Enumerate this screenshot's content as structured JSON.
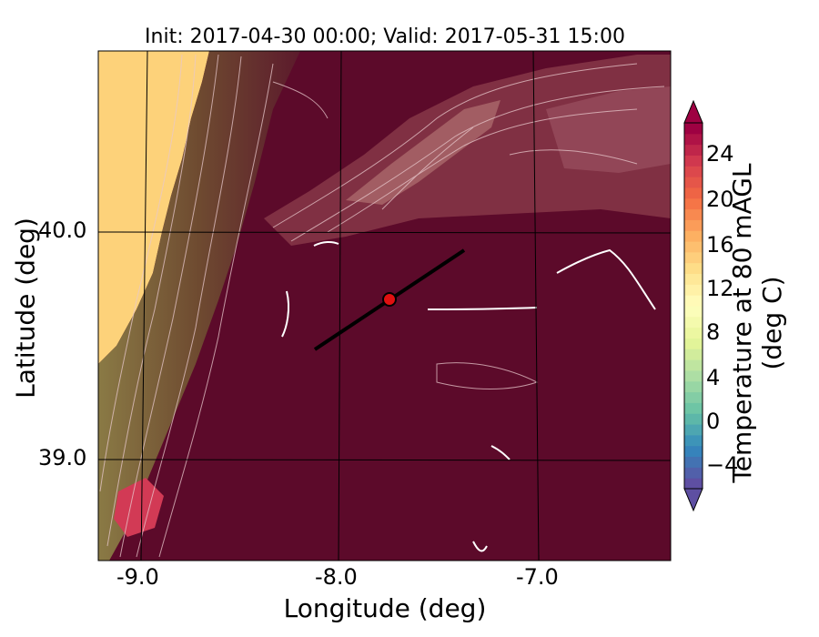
{
  "title": "Init: 2017-04-30 00:00; Valid: 2017-05-31 15:00",
  "xlabel": "Longitude (deg)",
  "ylabel": "Latitude (deg)",
  "colorbar_label": "Temperature at 80 mAGL (deg C)",
  "x_ticks": [
    "-9.0",
    "-8.0",
    "-7.0"
  ],
  "y_ticks": [
    "40.0",
    "39.0"
  ],
  "colorbar_ticks": [
    "24",
    "20",
    "16",
    "12",
    "8",
    "4",
    "0",
    "−4"
  ],
  "colormap": [
    "#5e4fa2",
    "#3288bd",
    "#66c2a5",
    "#abdda4",
    "#e6f598",
    "#ffffbf",
    "#fee08b",
    "#fdae61",
    "#f46d43",
    "#d53e4f",
    "#9e0142"
  ],
  "colors": {
    "ocean": "#fdd27a",
    "plain": "#5c0a2a",
    "marker": "#e01010"
  },
  "colorbar_range": [
    -6,
    28
  ],
  "colorbar_extend": "both"
}
